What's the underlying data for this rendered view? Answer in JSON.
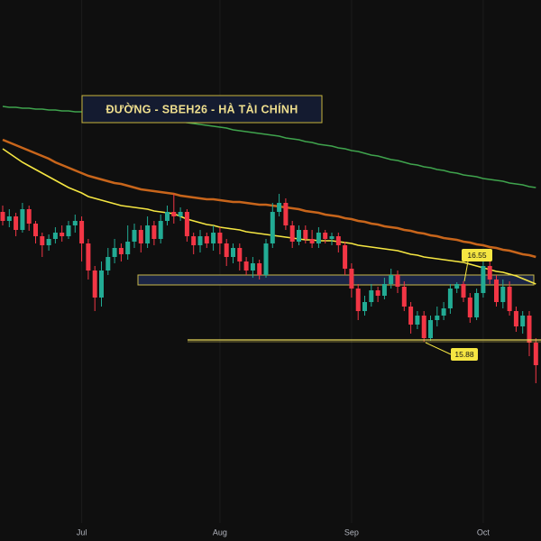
{
  "chart_data": {
    "type": "candlestick",
    "title": "ĐƯỜNG - SBEH26 - HÀ TÀI CHÍNH",
    "categories": [
      null,
      null,
      null,
      null,
      null,
      null,
      null,
      null,
      null,
      null,
      null,
      null,
      "Jul",
      null,
      null,
      null,
      null,
      null,
      null,
      null,
      null,
      null,
      null,
      null,
      null,
      null,
      null,
      null,
      null,
      null,
      null,
      null,
      null,
      "Aug",
      null,
      null,
      null,
      null,
      null,
      null,
      null,
      null,
      null,
      null,
      null,
      null,
      null,
      null,
      null,
      null,
      null,
      null,
      null,
      "Sep",
      null,
      null,
      null,
      null,
      null,
      null,
      null,
      null,
      null,
      null,
      null,
      null,
      null,
      null,
      null,
      null,
      null,
      null,
      null,
      "Oct",
      null,
      null,
      null,
      null,
      null,
      null,
      null,
      null
    ],
    "open": [
      17.32,
      17.22,
      17.27,
      17.12,
      17.35,
      17.19,
      17.05,
      16.95,
      17.02,
      17.09,
      17.05,
      17.17,
      17.22,
      16.97,
      16.67,
      16.37,
      16.67,
      16.82,
      16.92,
      16.85,
      16.99,
      17.12,
      16.97,
      17.17,
      17.02,
      17.22,
      17.32,
      17.27,
      17.32,
      17.05,
      16.95,
      17.05,
      16.97,
      17.09,
      16.97,
      16.82,
      16.92,
      16.77,
      16.67,
      16.75,
      16.62,
      16.97,
      17.32,
      17.42,
      17.17,
      16.99,
      17.12,
      17.02,
      16.97,
      17.09,
      17.02,
      17.05,
      16.95,
      16.69,
      16.47,
      16.22,
      16.32,
      16.45,
      16.39,
      16.52,
      16.62,
      16.49,
      16.27,
      16.07,
      16.17,
      15.92,
      16.12,
      16.17,
      16.25,
      16.47,
      16.52,
      16.37,
      16.15,
      16.42,
      16.72,
      16.57,
      16.32,
      16.49,
      16.22,
      16.05,
      16.17,
      15.87
    ],
    "high": [
      17.39,
      17.35,
      17.31,
      17.42,
      17.39,
      17.22,
      17.09,
      17.07,
      17.15,
      17.17,
      17.22,
      17.29,
      17.27,
      17.02,
      16.72,
      16.77,
      16.92,
      17.02,
      16.97,
      17.17,
      17.19,
      17.17,
      17.27,
      17.22,
      17.29,
      17.39,
      17.52,
      17.37,
      17.35,
      17.09,
      17.12,
      17.09,
      17.17,
      17.15,
      17.02,
      16.97,
      16.97,
      16.82,
      16.82,
      16.79,
      17.02,
      17.42,
      17.52,
      17.47,
      17.22,
      17.17,
      17.17,
      17.12,
      17.15,
      17.12,
      17.09,
      17.09,
      16.99,
      16.75,
      16.52,
      16.39,
      16.52,
      16.49,
      16.59,
      16.69,
      16.67,
      16.55,
      16.32,
      16.22,
      16.22,
      16.17,
      16.27,
      16.32,
      16.52,
      16.54,
      16.55,
      16.42,
      16.47,
      16.77,
      16.79,
      16.62,
      16.57,
      16.55,
      16.27,
      16.22,
      16.22,
      15.92
    ],
    "low": [
      17.17,
      17.15,
      17.05,
      17.09,
      17.11,
      16.97,
      16.82,
      16.89,
      16.97,
      16.99,
      17.02,
      17.09,
      16.77,
      16.57,
      16.22,
      16.27,
      16.62,
      16.75,
      16.77,
      16.79,
      16.92,
      16.87,
      16.92,
      16.95,
      16.97,
      17.17,
      17.19,
      17.22,
      16.99,
      16.85,
      16.87,
      16.92,
      16.89,
      16.85,
      16.72,
      16.75,
      16.67,
      16.62,
      16.59,
      16.57,
      16.59,
      16.92,
      17.27,
      17.12,
      16.92,
      16.95,
      16.97,
      16.92,
      16.92,
      16.97,
      16.95,
      16.87,
      16.62,
      16.37,
      16.12,
      16.17,
      16.27,
      16.32,
      16.35,
      16.47,
      16.42,
      16.22,
      15.97,
      16.02,
      15.88,
      15.89,
      16.05,
      16.12,
      16.19,
      16.42,
      16.32,
      16.09,
      16.12,
      16.37,
      16.52,
      16.27,
      16.25,
      16.17,
      15.99,
      15.97,
      15.72,
      15.42
    ],
    "close": [
      17.22,
      17.27,
      17.12,
      17.35,
      17.19,
      17.05,
      16.95,
      17.02,
      17.09,
      17.05,
      17.17,
      17.22,
      16.97,
      16.67,
      16.37,
      16.67,
      16.82,
      16.92,
      16.85,
      16.99,
      17.12,
      16.97,
      17.17,
      17.02,
      17.22,
      17.32,
      17.27,
      17.32,
      17.05,
      16.95,
      17.05,
      16.97,
      17.09,
      16.97,
      16.82,
      16.92,
      16.77,
      16.67,
      16.75,
      16.62,
      16.97,
      17.32,
      17.42,
      17.17,
      16.99,
      17.12,
      17.02,
      16.97,
      17.09,
      17.02,
      17.05,
      16.95,
      16.69,
      16.47,
      16.22,
      16.32,
      16.45,
      16.39,
      16.52,
      16.62,
      16.49,
      16.27,
      16.07,
      16.17,
      15.92,
      16.12,
      16.17,
      16.25,
      16.47,
      16.52,
      16.37,
      16.15,
      16.42,
      16.72,
      16.57,
      16.32,
      16.49,
      16.22,
      16.05,
      16.17,
      15.87,
      15.62
    ],
    "up_color": "#22ab94",
    "down_color": "#f23645",
    "lines": [
      {
        "color": "#3fa34d",
        "values": [
          18.49,
          18.48,
          18.48,
          18.47,
          18.47,
          18.46,
          18.46,
          18.45,
          18.45,
          18.44,
          18.44,
          18.43,
          18.43,
          18.42,
          18.42,
          18.41,
          18.4,
          18.39,
          18.39,
          18.38,
          18.37,
          18.36,
          18.36,
          18.35,
          18.34,
          18.33,
          18.33,
          18.32,
          18.31,
          18.3,
          18.29,
          18.28,
          18.27,
          18.26,
          18.25,
          18.23,
          18.22,
          18.21,
          18.2,
          18.19,
          18.18,
          18.17,
          18.16,
          18.14,
          18.13,
          18.12,
          18.1,
          18.09,
          18.07,
          18.06,
          18.05,
          18.03,
          18.02,
          18.0,
          17.99,
          17.97,
          17.95,
          17.94,
          17.92,
          17.9,
          17.89,
          17.87,
          17.85,
          17.84,
          17.82,
          17.81,
          17.79,
          17.78,
          17.76,
          17.75,
          17.73,
          17.72,
          17.71,
          17.69,
          17.68,
          17.67,
          17.66,
          17.64,
          17.63,
          17.62,
          17.6,
          17.59
        ]
      },
      {
        "color": "#c8651b",
        "values": [
          18.12,
          18.09,
          18.06,
          18.03,
          18.0,
          17.97,
          17.94,
          17.91,
          17.87,
          17.84,
          17.81,
          17.78,
          17.75,
          17.72,
          17.7,
          17.68,
          17.66,
          17.64,
          17.63,
          17.61,
          17.59,
          17.57,
          17.56,
          17.55,
          17.54,
          17.53,
          17.52,
          17.5,
          17.49,
          17.48,
          17.47,
          17.46,
          17.46,
          17.45,
          17.44,
          17.43,
          17.43,
          17.42,
          17.41,
          17.4,
          17.4,
          17.39,
          17.38,
          17.37,
          17.36,
          17.35,
          17.33,
          17.32,
          17.31,
          17.29,
          17.28,
          17.27,
          17.25,
          17.24,
          17.22,
          17.21,
          17.19,
          17.18,
          17.16,
          17.15,
          17.14,
          17.12,
          17.11,
          17.09,
          17.08,
          17.06,
          17.05,
          17.03,
          17.02,
          17.01,
          16.99,
          16.98,
          16.96,
          16.95,
          16.93,
          16.92,
          16.9,
          16.89,
          16.87,
          16.85,
          16.84,
          16.82
        ]
      },
      {
        "color": "#f5e642",
        "values": [
          18.02,
          17.97,
          17.92,
          17.87,
          17.83,
          17.79,
          17.75,
          17.71,
          17.67,
          17.63,
          17.59,
          17.56,
          17.53,
          17.49,
          17.47,
          17.45,
          17.43,
          17.41,
          17.39,
          17.38,
          17.37,
          17.36,
          17.35,
          17.33,
          17.32,
          17.31,
          17.3,
          17.27,
          17.24,
          17.22,
          17.2,
          17.18,
          17.17,
          17.15,
          17.14,
          17.13,
          17.12,
          17.1,
          17.09,
          17.08,
          17.07,
          17.06,
          17.05,
          17.04,
          17.03,
          17.02,
          17.01,
          17.01,
          17.0,
          17.0,
          17.0,
          16.99,
          16.98,
          16.97,
          16.95,
          16.94,
          16.93,
          16.92,
          16.91,
          16.9,
          16.89,
          16.87,
          16.85,
          16.84,
          16.82,
          16.81,
          16.8,
          16.79,
          16.78,
          16.77,
          16.76,
          16.74,
          16.72,
          16.7,
          16.68,
          16.66,
          16.65,
          16.63,
          16.61,
          16.58,
          16.55,
          16.52
        ]
      }
    ],
    "annotations": [
      {
        "text": "16.55"
      },
      {
        "text": "15.88"
      }
    ],
    "ylim": [
      13.67,
      19.67
    ],
    "grid": true
  }
}
